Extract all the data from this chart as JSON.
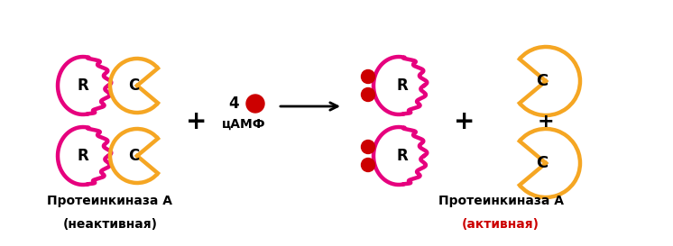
{
  "bg_color": "#ffffff",
  "pink_color": "#e6007e",
  "orange_color": "#f5a623",
  "red_color": "#cc0000",
  "black_color": "#000000",
  "title_left_line1": "Протеинкиназа А",
  "title_left_line2": "(неактивная)",
  "title_right_line1": "Протеинкиназа А",
  "title_right_line2": "(активная)",
  "lw": 3.2,
  "figsize": [
    7.46,
    2.73
  ],
  "dpi": 100
}
